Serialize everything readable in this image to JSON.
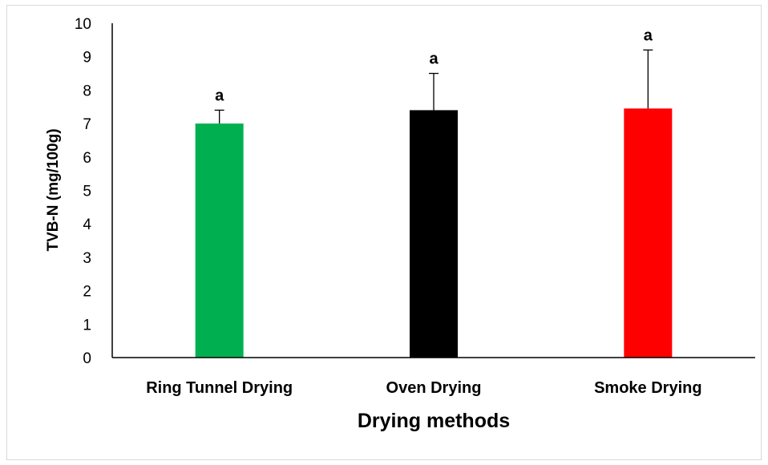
{
  "chart_data": {
    "type": "bar",
    "title": "",
    "xlabel": "Drying methods",
    "ylabel": "TVB-N (mg/100g)",
    "ylim": [
      0,
      10
    ],
    "yticks": [
      "0",
      "1",
      "2",
      "3",
      "4",
      "5",
      "6",
      "7",
      "8",
      "9",
      "10"
    ],
    "categories": [
      "Ring Tunnel Drying",
      "Oven Drying",
      "Smoke Drying"
    ],
    "values": [
      7.0,
      7.4,
      7.45
    ],
    "errors": [
      0.4,
      1.1,
      1.75
    ],
    "significance": [
      "a",
      "a",
      "a"
    ],
    "colors": [
      "#00b050",
      "#000000",
      "#ff0000"
    ],
    "grid": false,
    "legend": "none"
  }
}
